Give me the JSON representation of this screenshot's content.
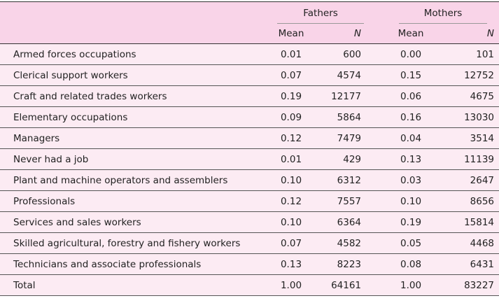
{
  "header": {
    "groups": [
      "Fathers",
      "Mothers"
    ],
    "sub": [
      "Mean",
      "N",
      "Mean",
      "N"
    ]
  },
  "rows": [
    {
      "label": "Armed forces occupations",
      "f_mean": "0.01",
      "f_n": "600",
      "m_mean": "0.00",
      "m_n": "101"
    },
    {
      "label": "Clerical support workers",
      "f_mean": "0.07",
      "f_n": "4574",
      "m_mean": "0.15",
      "m_n": "12752"
    },
    {
      "label": "Craft and related trades workers",
      "f_mean": "0.19",
      "f_n": "12177",
      "m_mean": "0.06",
      "m_n": "4675"
    },
    {
      "label": "Elementary occupations",
      "f_mean": "0.09",
      "f_n": "5864",
      "m_mean": "0.16",
      "m_n": "13030"
    },
    {
      "label": "Managers",
      "f_mean": "0.12",
      "f_n": "7479",
      "m_mean": "0.04",
      "m_n": "3514"
    },
    {
      "label": "Never had a job",
      "f_mean": "0.01",
      "f_n": "429",
      "m_mean": "0.13",
      "m_n": "11139"
    },
    {
      "label": "Plant and machine operators and assemblers",
      "f_mean": "0.10",
      "f_n": "6312",
      "m_mean": "0.03",
      "m_n": "2647"
    },
    {
      "label": "Professionals",
      "f_mean": "0.12",
      "f_n": "7557",
      "m_mean": "0.10",
      "m_n": "8656"
    },
    {
      "label": "Services and sales workers",
      "f_mean": "0.10",
      "f_n": "6364",
      "m_mean": "0.19",
      "m_n": "15814"
    },
    {
      "label": "Skilled agricultural, forestry and fishery workers",
      "f_mean": "0.07",
      "f_n": "4582",
      "m_mean": "0.05",
      "m_n": "4468"
    },
    {
      "label": "Technicians and associate professionals",
      "f_mean": "0.13",
      "f_n": "8223",
      "m_mean": "0.08",
      "m_n": "6431"
    },
    {
      "label": "Total",
      "f_mean": "1.00",
      "f_n": "64161",
      "m_mean": "1.00",
      "m_n": "83227"
    }
  ]
}
